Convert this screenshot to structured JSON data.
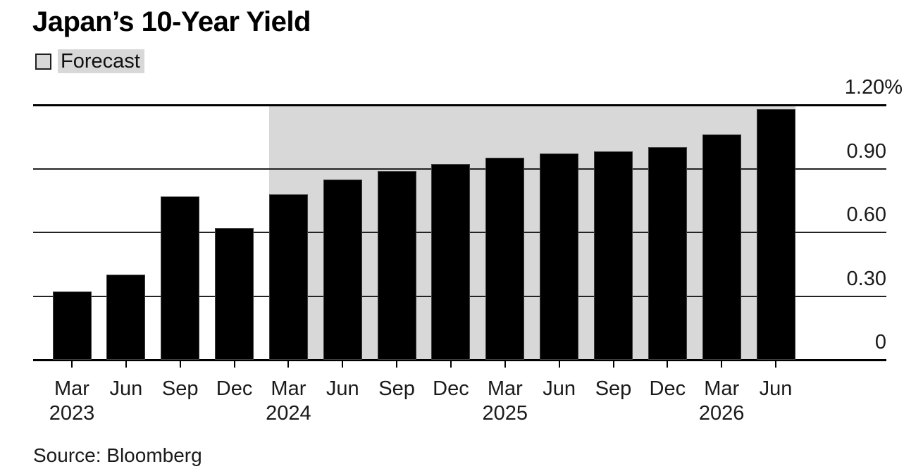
{
  "title": "Japan’s 10-Year Yield",
  "legend": {
    "label": "Forecast"
  },
  "source": "Source: Bloomberg",
  "colors": {
    "bar": "#000000",
    "forecast_region": "#d8d8d8",
    "gridline": "#222222",
    "axis_line": "#000000",
    "text": "#1a1a1a"
  },
  "chart_data": {
    "type": "bar",
    "title": "Japan’s 10-Year Yield",
    "unit": "%",
    "categories": [
      "Mar 2023",
      "Jun 2023",
      "Sep 2023",
      "Dec 2023",
      "Mar 2024",
      "Jun 2024",
      "Sep 2024",
      "Dec 2024",
      "Mar 2025",
      "Jun 2025",
      "Sep 2025",
      "Dec 2025",
      "Mar 2026",
      "Jun 2026"
    ],
    "values": [
      0.32,
      0.4,
      0.77,
      0.62,
      0.78,
      0.85,
      0.89,
      0.92,
      0.95,
      0.97,
      0.98,
      1.0,
      1.06,
      1.18
    ],
    "forecast_start_index": 4,
    "forecast_label": "Forecast",
    "x_tick_months": [
      "Mar",
      "Jun",
      "Sep",
      "Dec",
      "Mar",
      "Jun",
      "Sep",
      "Dec",
      "Mar",
      "Jun",
      "Sep",
      "Dec",
      "Mar",
      "Jun"
    ],
    "x_year_labels": [
      {
        "index": 0,
        "label": "2023"
      },
      {
        "index": 4,
        "label": "2024"
      },
      {
        "index": 8,
        "label": "2025"
      },
      {
        "index": 12,
        "label": "2026"
      }
    ],
    "y_ticks": [
      {
        "label": "1.20%",
        "value": 1.2
      },
      {
        "label": "0.90",
        "value": 0.9
      },
      {
        "label": "0.60",
        "value": 0.6
      },
      {
        "label": "0.30",
        "value": 0.3
      },
      {
        "label": "0",
        "value": 0
      }
    ],
    "ylim": [
      0,
      1.2
    ],
    "grid": true,
    "legend_position": "top-left",
    "source": "Source: Bloomberg"
  }
}
